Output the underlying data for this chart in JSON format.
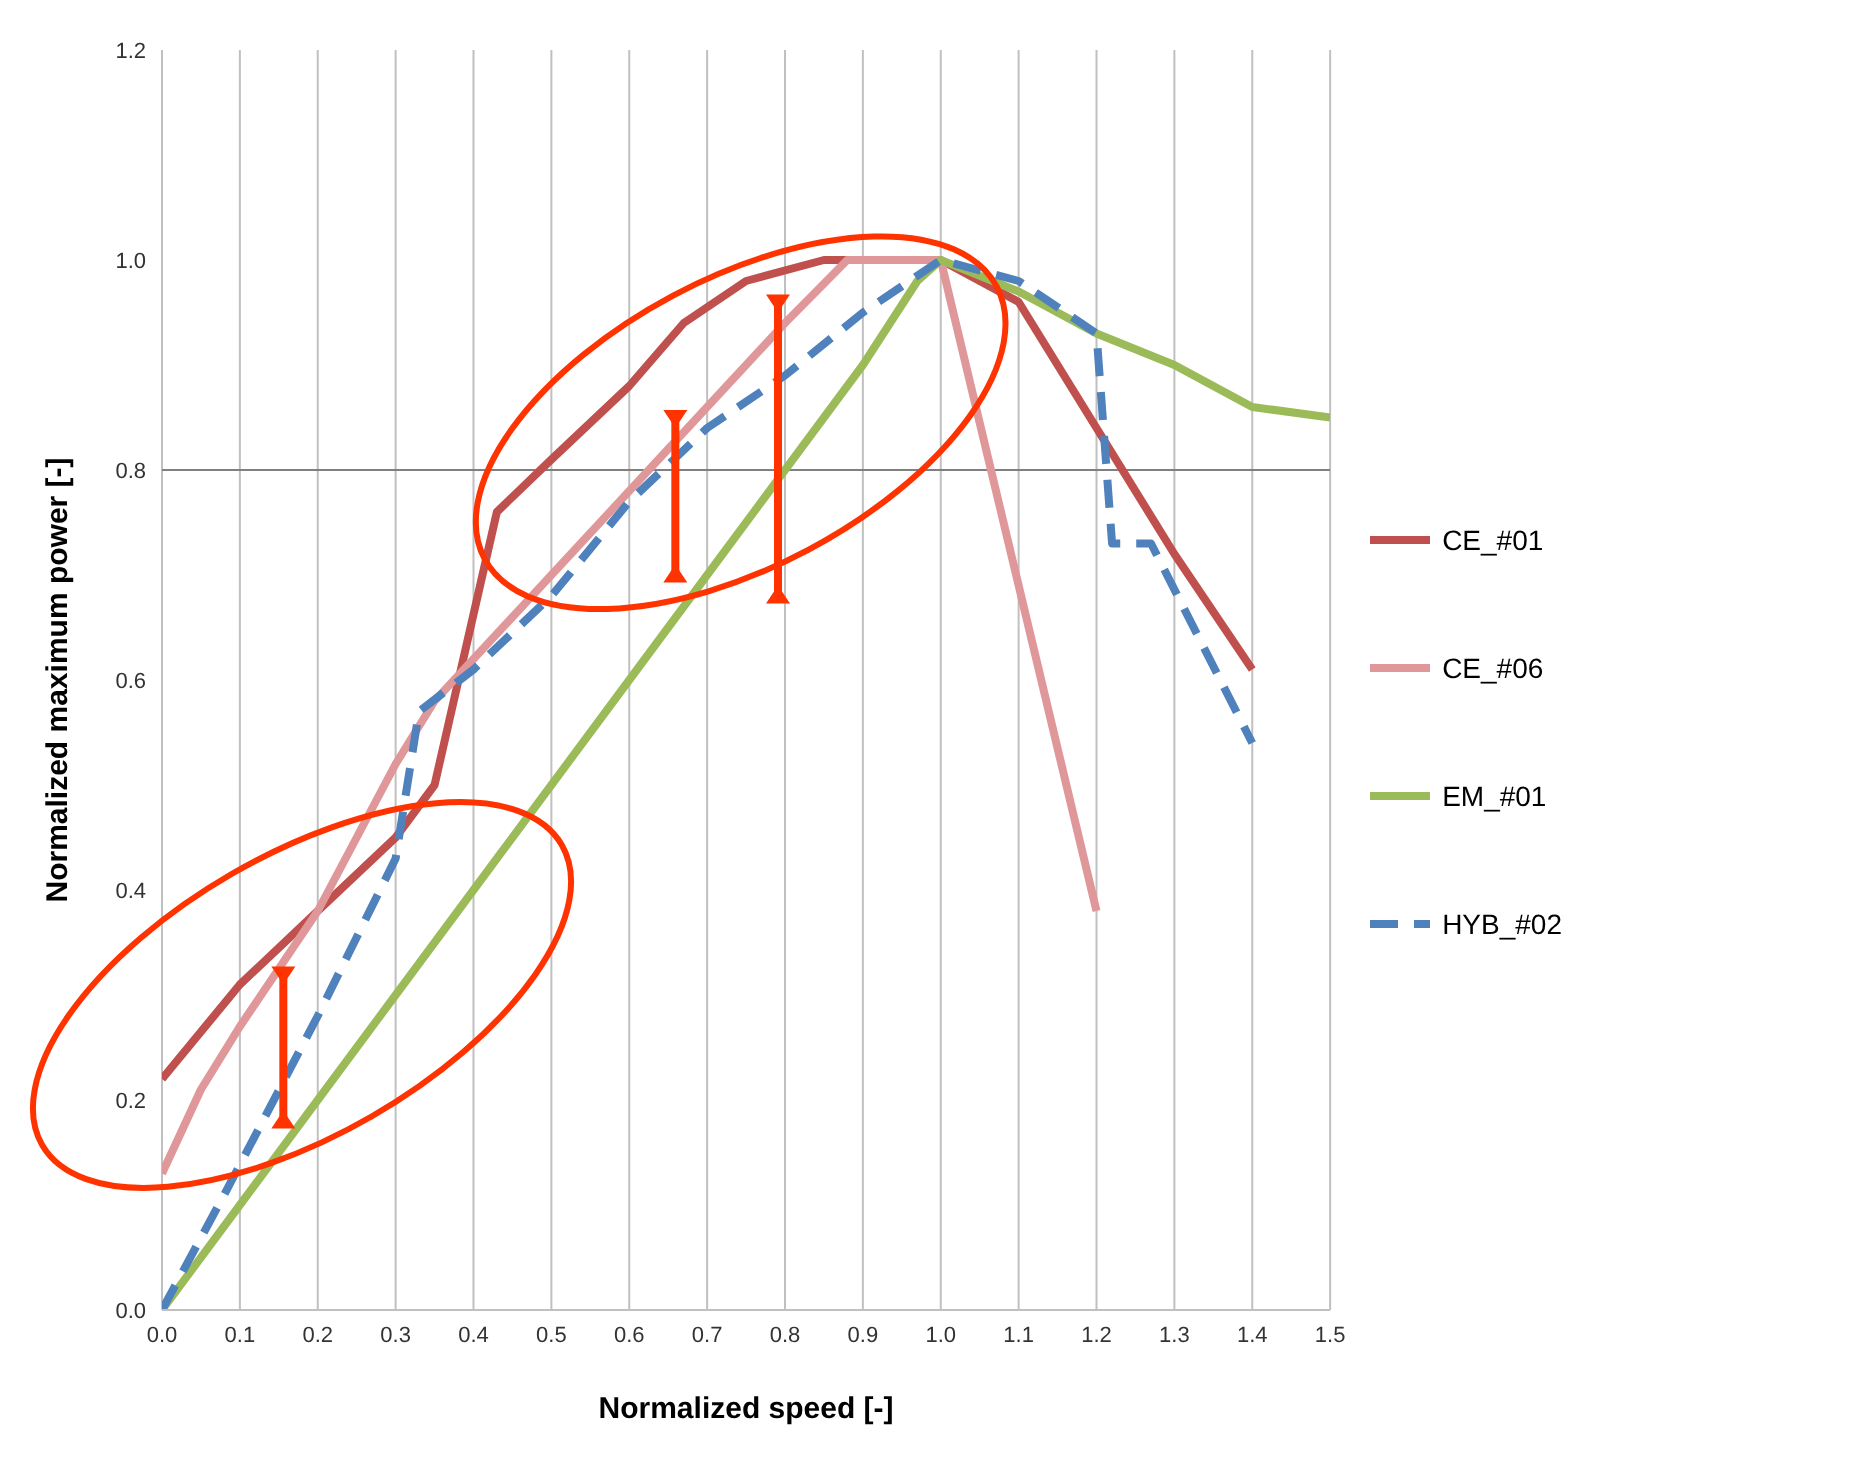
{
  "chart_data": {
    "type": "line",
    "xlabel": "Normalized speed [-]",
    "ylabel": "Normalized maximum power [-]",
    "xlim": [
      0,
      1.5
    ],
    "xticks": [
      {
        "value": 0,
        "label": "0.0"
      },
      {
        "value": 0.1,
        "label": "0.1"
      },
      {
        "value": 0.2,
        "label": "0.2"
      },
      {
        "value": 0.3,
        "label": "0.3"
      },
      {
        "value": 0.4,
        "label": "0.4"
      },
      {
        "value": 0.5,
        "label": "0.5"
      },
      {
        "value": 0.6,
        "label": "0.6"
      },
      {
        "value": 0.7,
        "label": "0.7"
      },
      {
        "value": 0.8,
        "label": "0.8"
      },
      {
        "value": 0.9,
        "label": "0.9"
      },
      {
        "value": 1,
        "label": "1.0"
      },
      {
        "value": 1.1,
        "label": "1.1"
      },
      {
        "value": 1.2,
        "label": "1.2"
      },
      {
        "value": 1.3,
        "label": "1.3"
      },
      {
        "value": 1.4,
        "label": "1.4"
      },
      {
        "value": 1.5,
        "label": "1.5"
      }
    ],
    "ylim": [
      0,
      1.2
    ],
    "yticks": [
      {
        "value": 0,
        "label": "0.0"
      },
      {
        "value": 0.2,
        "label": "0.2"
      },
      {
        "value": 0.4,
        "label": "0.4"
      },
      {
        "value": 0.6,
        "label": "0.6"
      },
      {
        "value": 0.8,
        "label": "0.8"
      },
      {
        "value": 1,
        "label": "1.0"
      },
      {
        "value": 1.2,
        "label": "1.2"
      }
    ],
    "grid": "x",
    "legend": "right",
    "marker": "none",
    "ref_lines": [
      {
        "axis": "y",
        "value": 0.8,
        "color": "#808080"
      }
    ],
    "series": [
      {
        "name": "CE_#01",
        "color": "#c0504d",
        "line_style": "solid",
        "x": [
          0,
          0.1,
          0.2,
          0.3,
          0.35,
          0.43,
          0.5,
          0.6,
          0.67,
          0.75,
          0.85,
          0.9,
          1.0,
          1.1,
          1.2,
          1.3,
          1.4
        ],
        "values": [
          0.22,
          0.31,
          0.38,
          0.45,
          0.5,
          0.76,
          0.81,
          0.88,
          0.94,
          0.98,
          1.0,
          1.0,
          1.0,
          0.96,
          0.84,
          0.72,
          0.61
        ]
      },
      {
        "name": "CE_#06",
        "color": "#e0979a",
        "line_style": "solid",
        "x": [
          0,
          0.05,
          0.1,
          0.2,
          0.3,
          0.35,
          0.4,
          0.5,
          0.6,
          0.7,
          0.8,
          0.88,
          1.0,
          1.2
        ],
        "values": [
          0.13,
          0.21,
          0.27,
          0.38,
          0.52,
          0.58,
          0.62,
          0.7,
          0.78,
          0.86,
          0.94,
          1.0,
          1.0,
          0.38
        ]
      },
      {
        "name": "EM_#01",
        "color": "#9bbb59",
        "line_style": "solid",
        "x": [
          0,
          0.1,
          0.2,
          0.3,
          0.4,
          0.5,
          0.6,
          0.7,
          0.8,
          0.9,
          0.97,
          1.0,
          1.1,
          1.2,
          1.3,
          1.35,
          1.4,
          1.5
        ],
        "values": [
          0,
          0.1,
          0.2,
          0.3,
          0.4,
          0.5,
          0.6,
          0.7,
          0.8,
          0.9,
          0.98,
          1.0,
          0.97,
          0.93,
          0.9,
          0.88,
          0.86,
          0.85
        ]
      },
      {
        "name": "HYB_#02",
        "color": "#4f81bd",
        "line_style": "dashed",
        "x": [
          0,
          0.08,
          0.2,
          0.3,
          0.33,
          0.4,
          0.5,
          0.6,
          0.7,
          0.8,
          0.9,
          1.0,
          1.1,
          1.2,
          1.22,
          1.27,
          1.4
        ],
        "values": [
          0,
          0.11,
          0.28,
          0.43,
          0.57,
          0.61,
          0.68,
          0.77,
          0.84,
          0.89,
          0.95,
          1.0,
          0.98,
          0.93,
          0.73,
          0.73,
          0.54
        ]
      }
    ]
  }
}
